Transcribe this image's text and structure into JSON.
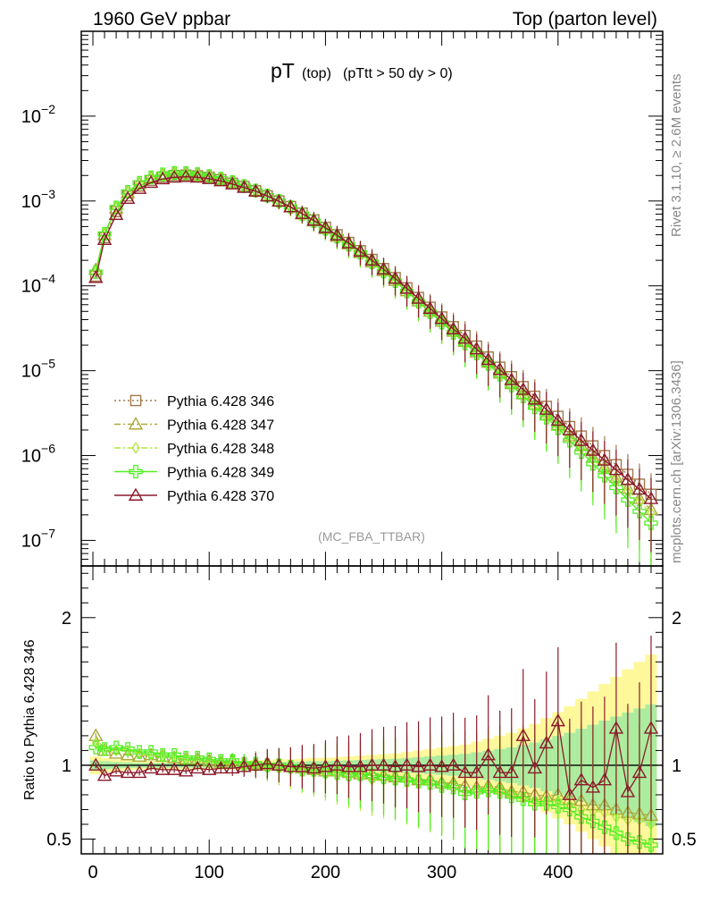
{
  "header": {
    "left": "1960 GeV ppbar",
    "right": "Top (parton level)"
  },
  "plot_title": {
    "main": "pT",
    "sub1": "(top)",
    "sub2": "(pTtt > 50 dy > 0)"
  },
  "side_labels": {
    "rivet": "Rivet 3.1.10, ≥ 2.6M events",
    "mcplots": "mcplots.cern.ch [arXiv:1306.3436]"
  },
  "analysis_tag": "(MC_FBA_TTBAR)",
  "ratio_ylabel": "Ratio to Pythia 6.428 346",
  "legend": [
    {
      "label": "Pythia 6.428 346",
      "color": "#a0784a",
      "marker": "square",
      "dash": "dotted"
    },
    {
      "label": "Pythia 6.428 347",
      "color": "#a9a93a",
      "marker": "triangle",
      "dash": "dashdot"
    },
    {
      "label": "Pythia 6.428 348",
      "color": "#b4e63c",
      "marker": "diamond",
      "dash": "dashdot"
    },
    {
      "label": "Pythia 6.428 349",
      "color": "#50f020",
      "marker": "cross",
      "dash": "solid"
    },
    {
      "label": "Pythia 6.428 370",
      "color": "#8b1a2a",
      "marker": "triangle",
      "dash": "solid"
    }
  ],
  "chart_data": [
    {
      "type": "line",
      "panel": "main",
      "xlabel": "",
      "ylabel": "",
      "xlim": [
        -10,
        490
      ],
      "ylim": [
        5e-08,
        0.1
      ],
      "yscale": "log",
      "ytick_labels": [
        "10^-7",
        "10^-6",
        "10^-5",
        "10^-4",
        "10^-3",
        "10^-2"
      ],
      "x": [
        2.5,
        10,
        20,
        30,
        40,
        50,
        60,
        70,
        80,
        90,
        100,
        110,
        120,
        130,
        140,
        150,
        160,
        170,
        180,
        190,
        200,
        210,
        220,
        230,
        240,
        250,
        260,
        270,
        280,
        290,
        300,
        310,
        320,
        330,
        340,
        350,
        360,
        370,
        380,
        390,
        400,
        410,
        420,
        430,
        440,
        450,
        460,
        470,
        480
      ],
      "series": [
        {
          "name": "Pythia 6.428 346",
          "values": [
            0.00013,
            0.00037,
            0.00075,
            0.00115,
            0.0015,
            0.00175,
            0.00192,
            0.002,
            0.00202,
            0.00198,
            0.0019,
            0.00178,
            0.00162,
            0.00148,
            0.00132,
            0.00115,
            0.001,
            0.00086,
            0.00072,
            0.0006,
            0.00049,
            0.0004,
            0.000325,
            0.00026,
            0.000205,
            0.00016,
            0.000125,
            9.5e-05,
            7.3e-05,
            5.6e-05,
            4.3e-05,
            3.3e-05,
            2.6e-05,
            1.95e-05,
            1.45e-05,
            1.1e-05,
            8.5e-06,
            6.5e-06,
            5e-06,
            3.8e-06,
            2.9e-06,
            2.2e-06,
            1.7e-06,
            1.3e-06,
            1e-06,
            7.8e-07,
            6e-07,
            4.6e-07,
            3.5e-07
          ]
        },
        {
          "name": "Pythia 6.428 347",
          "values": [
            0.000155,
            0.0004,
            0.00082,
            0.00125,
            0.0016,
            0.00187,
            0.00202,
            0.0021,
            0.0021,
            0.00205,
            0.00196,
            0.00182,
            0.00166,
            0.0015,
            0.00133,
            0.00116,
            0.001,
            0.00085,
            0.0007,
            0.00058,
            0.00047,
            0.00038,
            0.00031,
            0.000245,
            0.00019,
            0.00015,
            0.000115,
            8.7e-05,
            6.6e-05,
            5e-05,
            3.8e-05,
            2.9e-05,
            2.2e-05,
            1.65e-05,
            1.25e-05,
            9.3e-06,
            7e-06,
            5.3e-06,
            4e-06,
            3e-06,
            2.3e-06,
            1.7e-06,
            1.3e-06,
            9.5e-07,
            7.3e-07,
            5.5e-07,
            4.1e-07,
            3.1e-07,
            2.3e-07
          ]
        },
        {
          "name": "Pythia 6.428 348",
          "values": [
            0.00015,
            0.000405,
            0.00083,
            0.00127,
            0.00162,
            0.00188,
            0.00203,
            0.0021,
            0.0021,
            0.00204,
            0.00194,
            0.0018,
            0.00164,
            0.00148,
            0.00131,
            0.00114,
            0.00098,
            0.00083,
            0.00069,
            0.00057,
            0.00046,
            0.00037,
            0.0003,
            0.00024,
            0.000185,
            0.000145,
            0.000112,
            8.5e-05,
            6.4e-05,
            4.9e-05,
            3.7e-05,
            2.8e-05,
            2.1e-05,
            1.6e-05,
            1.2e-05,
            9e-06,
            6.8e-06,
            5.1e-06,
            3.8e-06,
            2.9e-06,
            2.2e-06,
            1.6e-06,
            1.2e-06,
            9e-07,
            6.8e-07,
            5.1e-07,
            3.8e-07,
            2.9e-07,
            2.1e-07
          ]
        },
        {
          "name": "Pythia 6.428 349",
          "values": [
            0.000145,
            0.00041,
            0.00084,
            0.00128,
            0.00164,
            0.0019,
            0.00206,
            0.00214,
            0.00213,
            0.00207,
            0.00197,
            0.00183,
            0.00167,
            0.0015,
            0.00133,
            0.00116,
            0.001,
            0.00085,
            0.0007,
            0.00058,
            0.00047,
            0.00038,
            0.000305,
            0.000245,
            0.00019,
            0.000148,
            0.000114,
            8.6e-05,
            6.5e-05,
            4.9e-05,
            3.7e-05,
            2.8e-05,
            2.1e-05,
            1.6e-05,
            1.2e-05,
            9e-06,
            6.7e-06,
            5e-06,
            3.7e-06,
            2.8e-06,
            2.1e-06,
            1.5e-06,
            1.1e-06,
            8e-07,
            5.8e-07,
            4.2e-07,
            3e-07,
            2.2e-07,
            1.6e-07
          ]
        },
        {
          "name": "Pythia 6.428 370",
          "values": [
            0.000125,
            0.00035,
            0.00069,
            0.00107,
            0.0014,
            0.00165,
            0.00182,
            0.0019,
            0.00193,
            0.0019,
            0.00183,
            0.00172,
            0.00158,
            0.00144,
            0.0013,
            0.00114,
            0.00099,
            0.00085,
            0.00071,
            0.00059,
            0.000485,
            0.000395,
            0.00032,
            0.000255,
            0.0002,
            0.000157,
            0.000122,
            9.3e-05,
            7.1e-05,
            5.4e-05,
            4.1e-05,
            3.1e-05,
            2.4e-05,
            1.8e-05,
            1.35e-05,
            1.03e-05,
            7.8e-06,
            6e-06,
            4.6e-06,
            3.5e-06,
            2.6e-06,
            2e-06,
            1.5e-06,
            1.15e-06,
            8.8e-07,
            6.8e-07,
            5.2e-07,
            4e-07,
            3.1e-07
          ]
        }
      ]
    },
    {
      "type": "line",
      "panel": "ratio",
      "xlabel": "",
      "ylabel": "Ratio to Pythia 6.428 346",
      "xlim": [
        -10,
        490
      ],
      "ylim": [
        0.4,
        2.35
      ],
      "ytick_labels": [
        "0.5",
        "1",
        "2"
      ],
      "xtick_labels": [
        "0",
        "100",
        "200",
        "300",
        "400"
      ],
      "x": [
        2.5,
        10,
        20,
        30,
        40,
        50,
        60,
        70,
        80,
        90,
        100,
        110,
        120,
        130,
        140,
        150,
        160,
        170,
        180,
        190,
        200,
        210,
        220,
        230,
        240,
        250,
        260,
        270,
        280,
        290,
        300,
        310,
        320,
        330,
        340,
        350,
        360,
        370,
        380,
        390,
        400,
        410,
        420,
        430,
        440,
        450,
        460,
        470,
        480
      ],
      "band_halfwidth": [
        0.06,
        0.05,
        0.04,
        0.035,
        0.03,
        0.03,
        0.03,
        0.03,
        0.03,
        0.03,
        0.03,
        0.03,
        0.03,
        0.03,
        0.035,
        0.035,
        0.04,
        0.04,
        0.045,
        0.05,
        0.05,
        0.055,
        0.06,
        0.065,
        0.07,
        0.075,
        0.08,
        0.09,
        0.1,
        0.11,
        0.12,
        0.13,
        0.14,
        0.16,
        0.18,
        0.2,
        0.22,
        0.25,
        0.28,
        0.32,
        0.36,
        0.4,
        0.45,
        0.5,
        0.55,
        0.6,
        0.65,
        0.7,
        0.75
      ],
      "series": [
        {
          "name": "Pythia 6.428 347",
          "values": [
            1.2,
            1.1,
            1.08,
            1.07,
            1.06,
            1.07,
            1.06,
            1.05,
            1.04,
            1.04,
            1.03,
            1.02,
            1.03,
            1.01,
            1.01,
            1.0,
            1.0,
            0.99,
            0.98,
            0.97,
            0.96,
            0.96,
            0.95,
            0.94,
            0.94,
            0.93,
            0.92,
            0.92,
            0.9,
            0.9,
            0.88,
            0.88,
            0.86,
            0.85,
            0.86,
            0.85,
            0.82,
            0.82,
            0.8,
            0.79,
            0.8,
            0.77,
            0.76,
            0.73,
            0.73,
            0.7,
            0.68,
            0.67,
            0.66
          ]
        },
        {
          "name": "Pythia 6.428 348",
          "values": [
            1.15,
            1.1,
            1.1,
            1.1,
            1.08,
            1.07,
            1.06,
            1.05,
            1.04,
            1.03,
            1.02,
            1.01,
            1.01,
            1.0,
            0.99,
            0.99,
            0.98,
            0.97,
            0.96,
            0.95,
            0.94,
            0.93,
            0.92,
            0.92,
            0.9,
            0.9,
            0.9,
            0.89,
            0.88,
            0.87,
            0.86,
            0.85,
            0.82,
            0.82,
            0.83,
            0.82,
            0.8,
            0.78,
            0.76,
            0.76,
            0.76,
            0.73,
            0.7,
            0.69,
            0.68,
            0.65,
            0.63,
            0.63,
            0.6
          ]
        },
        {
          "name": "Pythia 6.428 349",
          "values": [
            1.12,
            1.11,
            1.12,
            1.11,
            1.09,
            1.09,
            1.07,
            1.07,
            1.05,
            1.05,
            1.04,
            1.03,
            1.03,
            1.01,
            1.01,
            1.0,
            1.0,
            0.99,
            0.97,
            0.97,
            0.96,
            0.95,
            0.94,
            0.94,
            0.93,
            0.92,
            0.91,
            0.9,
            0.89,
            0.88,
            0.86,
            0.85,
            0.81,
            0.82,
            0.83,
            0.82,
            0.79,
            0.77,
            0.74,
            0.74,
            0.72,
            0.7,
            0.65,
            0.62,
            0.58,
            0.54,
            0.5,
            0.48,
            0.46
          ]
        },
        {
          "name": "Pythia 6.428 370",
          "values": [
            1.0,
            0.93,
            0.96,
            0.95,
            0.95,
            0.98,
            0.97,
            0.97,
            0.96,
            0.98,
            0.97,
            0.98,
            0.98,
            0.99,
            1.0,
            1.01,
            1.0,
            0.99,
            0.99,
            0.98,
            0.99,
            1.0,
            0.99,
            0.99,
            1.0,
            1.0,
            0.99,
            1.0,
            0.99,
            1.0,
            0.99,
            1.0,
            0.95,
            0.95,
            1.07,
            0.95,
            0.95,
            1.2,
            0.98,
            1.15,
            1.3,
            0.8,
            0.9,
            0.85,
            0.9,
            1.25,
            0.82,
            0.95,
            1.25
          ]
        }
      ]
    }
  ]
}
